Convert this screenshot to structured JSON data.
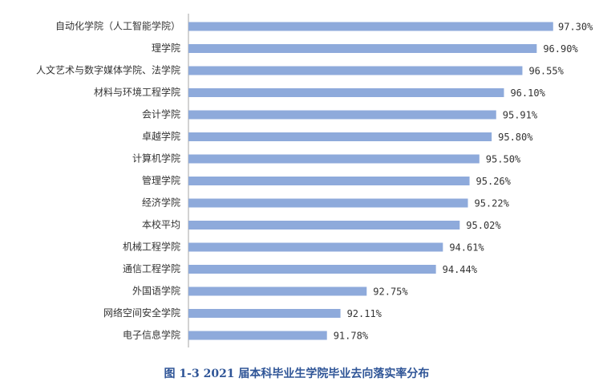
{
  "chart_data": {
    "type": "barh",
    "title": "图 1-3 2021 届本科毕业生学院毕业去向落实率分布",
    "categories": [
      "自动化学院（人工智能学院）",
      "理学院",
      "人文艺术与数字媒体学院、法学院",
      "材料与环境工程学院",
      "会计学院",
      "卓越学院",
      "计算机学院",
      "管理学院",
      "经济学院",
      "本校平均",
      "机械工程学院",
      "通信工程学院",
      "外国语学院",
      "网络空间安全学院",
      "电子信息学院"
    ],
    "values": [
      97.3,
      96.9,
      96.55,
      96.1,
      95.91,
      95.8,
      95.5,
      95.26,
      95.22,
      95.02,
      94.61,
      94.44,
      92.75,
      92.11,
      91.78
    ],
    "value_labels": [
      "97.30%",
      "96.90%",
      "96.55%",
      "96.10%",
      "95.91%",
      "95.80%",
      "95.50%",
      "95.26%",
      "95.22%",
      "95.02%",
      "94.61%",
      "94.44%",
      "92.75%",
      "92.11%",
      "91.78%"
    ],
    "color": "#8eaadb",
    "xlim": [
      88.4,
      97.5
    ]
  }
}
